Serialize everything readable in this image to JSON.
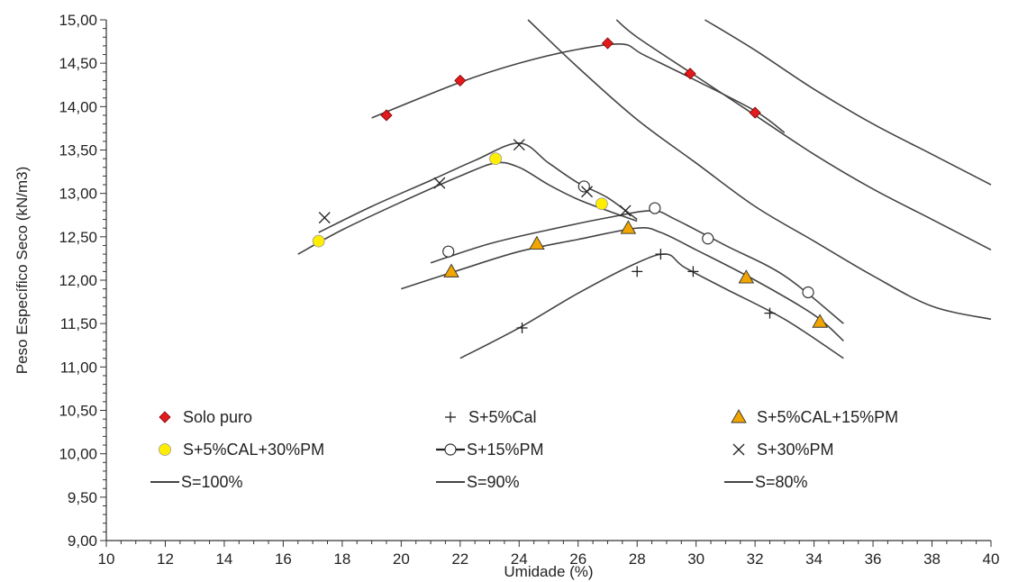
{
  "chart_data": {
    "type": "scatter",
    "xlabel": "Umidade (%)",
    "ylabel": "Peso Específico Seco (kN/m3)",
    "xlim": [
      10,
      40
    ],
    "ylim": [
      9,
      15
    ],
    "x_ticks": [
      "10",
      "12",
      "14",
      "16",
      "18",
      "20",
      "22",
      "24",
      "26",
      "28",
      "30",
      "32",
      "34",
      "36",
      "38",
      "40"
    ],
    "y_ticks": [
      "9,00",
      "9,50",
      "10,00",
      "10,50",
      "11,00",
      "11,50",
      "12,00",
      "12,50",
      "13,00",
      "13,50",
      "14,00",
      "14,50",
      "15,00"
    ],
    "grid": false,
    "legend_position": "bottom-inside",
    "series": [
      {
        "name": "Solo puro",
        "marker": "diamond",
        "color": "#e31a1c",
        "points": [
          [
            19.5,
            13.9
          ],
          [
            22.0,
            14.3
          ],
          [
            27.0,
            14.73
          ],
          [
            29.8,
            14.38
          ],
          [
            32.0,
            13.93
          ]
        ],
        "curve": [
          [
            19.0,
            13.87
          ],
          [
            22.0,
            14.28
          ],
          [
            24.0,
            14.5
          ],
          [
            26.0,
            14.66
          ],
          [
            27.5,
            14.72
          ],
          [
            28.2,
            14.6
          ],
          [
            30.0,
            14.3
          ],
          [
            32.0,
            13.95
          ],
          [
            33.0,
            13.7
          ]
        ]
      },
      {
        "name": "S+5%Cal",
        "marker": "plus",
        "color": "#222222",
        "points": [
          [
            24.1,
            11.45
          ],
          [
            28.0,
            12.1
          ],
          [
            28.8,
            12.3
          ],
          [
            29.9,
            12.1
          ],
          [
            32.5,
            11.62
          ]
        ],
        "curve": [
          [
            22.0,
            11.1
          ],
          [
            24.0,
            11.45
          ],
          [
            26.0,
            11.85
          ],
          [
            28.0,
            12.2
          ],
          [
            29.0,
            12.3
          ],
          [
            29.6,
            12.15
          ],
          [
            31.0,
            11.9
          ],
          [
            33.0,
            11.55
          ],
          [
            35.0,
            11.1
          ]
        ]
      },
      {
        "name": "S+5%CAL+15%PM",
        "marker": "triangle",
        "color": "#f0a500",
        "points": [
          [
            21.7,
            12.1
          ],
          [
            24.6,
            12.42
          ],
          [
            27.7,
            12.6
          ],
          [
            31.7,
            12.03
          ],
          [
            34.2,
            11.52
          ]
        ],
        "curve": [
          [
            20.0,
            11.9
          ],
          [
            22.0,
            12.12
          ],
          [
            24.0,
            12.33
          ],
          [
            26.0,
            12.47
          ],
          [
            28.0,
            12.6
          ],
          [
            28.8,
            12.55
          ],
          [
            30.0,
            12.35
          ],
          [
            32.0,
            12.0
          ],
          [
            34.0,
            11.6
          ],
          [
            35.0,
            11.3
          ]
        ]
      },
      {
        "name": "S+5%CAL+30%PM",
        "marker": "circle-filled",
        "color": "#ffee00",
        "points": [
          [
            17.2,
            12.45
          ],
          [
            23.2,
            13.4
          ],
          [
            26.8,
            12.88
          ]
        ],
        "curve": [
          [
            16.5,
            12.3
          ],
          [
            18.0,
            12.58
          ],
          [
            20.0,
            12.9
          ],
          [
            22.0,
            13.2
          ],
          [
            23.2,
            13.35
          ],
          [
            24.0,
            13.3
          ],
          [
            25.0,
            13.1
          ],
          [
            26.0,
            12.93
          ],
          [
            27.0,
            12.8
          ],
          [
            28.0,
            12.68
          ]
        ]
      },
      {
        "name": "S+15%PM",
        "marker": "circle-open",
        "color": "#222222",
        "points": [
          [
            21.6,
            12.33
          ],
          [
            26.2,
            13.08
          ],
          [
            28.6,
            12.83
          ],
          [
            30.4,
            12.48
          ],
          [
            33.8,
            11.86
          ]
        ],
        "curve": [
          [
            21.0,
            12.2
          ],
          [
            23.0,
            12.42
          ],
          [
            25.0,
            12.58
          ],
          [
            27.0,
            12.72
          ],
          [
            28.5,
            12.8
          ],
          [
            29.3,
            12.7
          ],
          [
            31.0,
            12.4
          ],
          [
            33.0,
            12.05
          ],
          [
            35.0,
            11.5
          ]
        ]
      },
      {
        "name": "S+30%PM",
        "marker": "x",
        "color": "#222222",
        "points": [
          [
            17.4,
            12.72
          ],
          [
            21.3,
            13.12
          ],
          [
            24.0,
            13.56
          ],
          [
            26.3,
            13.02
          ],
          [
            27.6,
            12.8
          ]
        ],
        "curve": [
          [
            17.2,
            12.55
          ],
          [
            19.0,
            12.85
          ],
          [
            21.0,
            13.15
          ],
          [
            22.5,
            13.38
          ],
          [
            24.0,
            13.58
          ],
          [
            25.0,
            13.35
          ],
          [
            26.0,
            13.12
          ],
          [
            27.0,
            12.95
          ],
          [
            28.0,
            12.7
          ]
        ]
      },
      {
        "name": "S=100%",
        "marker": "line",
        "color": "#333333",
        "curve": [
          [
            24.3,
            15.0
          ],
          [
            26.0,
            14.45
          ],
          [
            28.0,
            13.85
          ],
          [
            30.0,
            13.35
          ],
          [
            32.0,
            12.85
          ],
          [
            34.0,
            12.45
          ],
          [
            36.0,
            12.05
          ],
          [
            38.0,
            11.7
          ],
          [
            40.0,
            11.55
          ]
        ]
      },
      {
        "name": "S=90%",
        "marker": "line",
        "color": "#333333",
        "curve": [
          [
            27.3,
            15.0
          ],
          [
            28.0,
            14.8
          ],
          [
            30.0,
            14.35
          ],
          [
            32.0,
            13.9
          ],
          [
            34.0,
            13.45
          ],
          [
            36.0,
            13.05
          ],
          [
            38.0,
            12.7
          ],
          [
            40.0,
            12.35
          ]
        ]
      },
      {
        "name": "S=80%",
        "marker": "line",
        "color": "#333333",
        "curve": [
          [
            30.3,
            15.0
          ],
          [
            32.0,
            14.65
          ],
          [
            34.0,
            14.2
          ],
          [
            36.0,
            13.8
          ],
          [
            38.0,
            13.45
          ],
          [
            40.0,
            13.1
          ]
        ]
      }
    ]
  }
}
